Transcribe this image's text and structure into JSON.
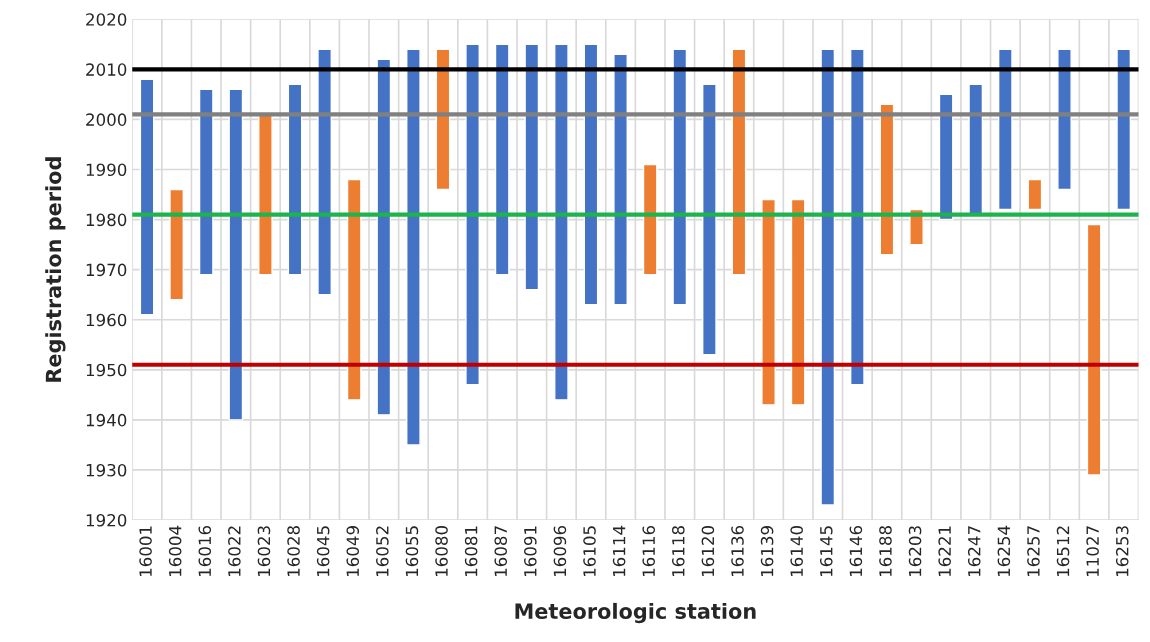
{
  "chart_data": {
    "type": "bar",
    "xlabel": "Meteorologic station",
    "ylabel": "Registration period",
    "categories": [
      "16001",
      "16004",
      "16016",
      "16022",
      "16023",
      "16028",
      "16045",
      "16049",
      "16052",
      "16055",
      "16080",
      "16081",
      "16087",
      "16091",
      "16096",
      "16105",
      "16114",
      "16116",
      "16118",
      "16120",
      "16136",
      "16139",
      "16140",
      "16145",
      "16146",
      "16188",
      "16203",
      "16221",
      "16247",
      "16254",
      "16257",
      "16512",
      "11027",
      "16253"
    ],
    "base": [
      1961,
      1964,
      1969,
      1940,
      1969,
      1969,
      1965,
      1944,
      1941,
      1935,
      1986,
      1947,
      1969,
      1966,
      1944,
      1963,
      1963,
      1969,
      1963,
      1953,
      1969,
      1943,
      1943,
      1923,
      1947,
      1973,
      1975,
      1980,
      1981,
      1982,
      1982,
      1986,
      1929,
      1982
    ],
    "values": [
      47,
      22,
      37,
      66,
      32,
      38,
      49,
      44,
      71,
      79,
      28,
      68,
      46,
      49,
      71,
      52,
      50,
      22,
      51,
      54,
      45,
      41,
      41,
      91,
      67,
      30,
      7,
      25,
      26,
      32,
      6,
      28,
      50,
      32
    ],
    "colors": [
      "#4472c4",
      "#ed7d31",
      "#4472c4",
      "#4472c4",
      "#ed7d31",
      "#4472c4",
      "#4472c4",
      "#ed7d31",
      "#4472c4",
      "#4472c4",
      "#ed7d31",
      "#4472c4",
      "#4472c4",
      "#4472c4",
      "#4472c4",
      "#4472c4",
      "#4472c4",
      "#ed7d31",
      "#4472c4",
      "#4472c4",
      "#ed7d31",
      "#ed7d31",
      "#ed7d31",
      "#4472c4",
      "#4472c4",
      "#ed7d31",
      "#ed7d31",
      "#4472c4",
      "#4472c4",
      "#4472c4",
      "#ed7d31",
      "#4472c4",
      "#ed7d31",
      "#4472c4"
    ],
    "ylim": [
      1920,
      2020
    ],
    "yticks": [
      1920,
      1930,
      1940,
      1950,
      1960,
      1970,
      1980,
      1990,
      2000,
      2010,
      2020
    ],
    "ref_lines": [
      {
        "axis": "y",
        "value": 2010,
        "color": "#000000"
      },
      {
        "axis": "y",
        "value": 2001,
        "color": "#808080"
      },
      {
        "axis": "y",
        "value": 1981,
        "color": "#1db34d"
      },
      {
        "axis": "y",
        "value": 1951,
        "color": "#c00000"
      }
    ],
    "grid": true
  }
}
